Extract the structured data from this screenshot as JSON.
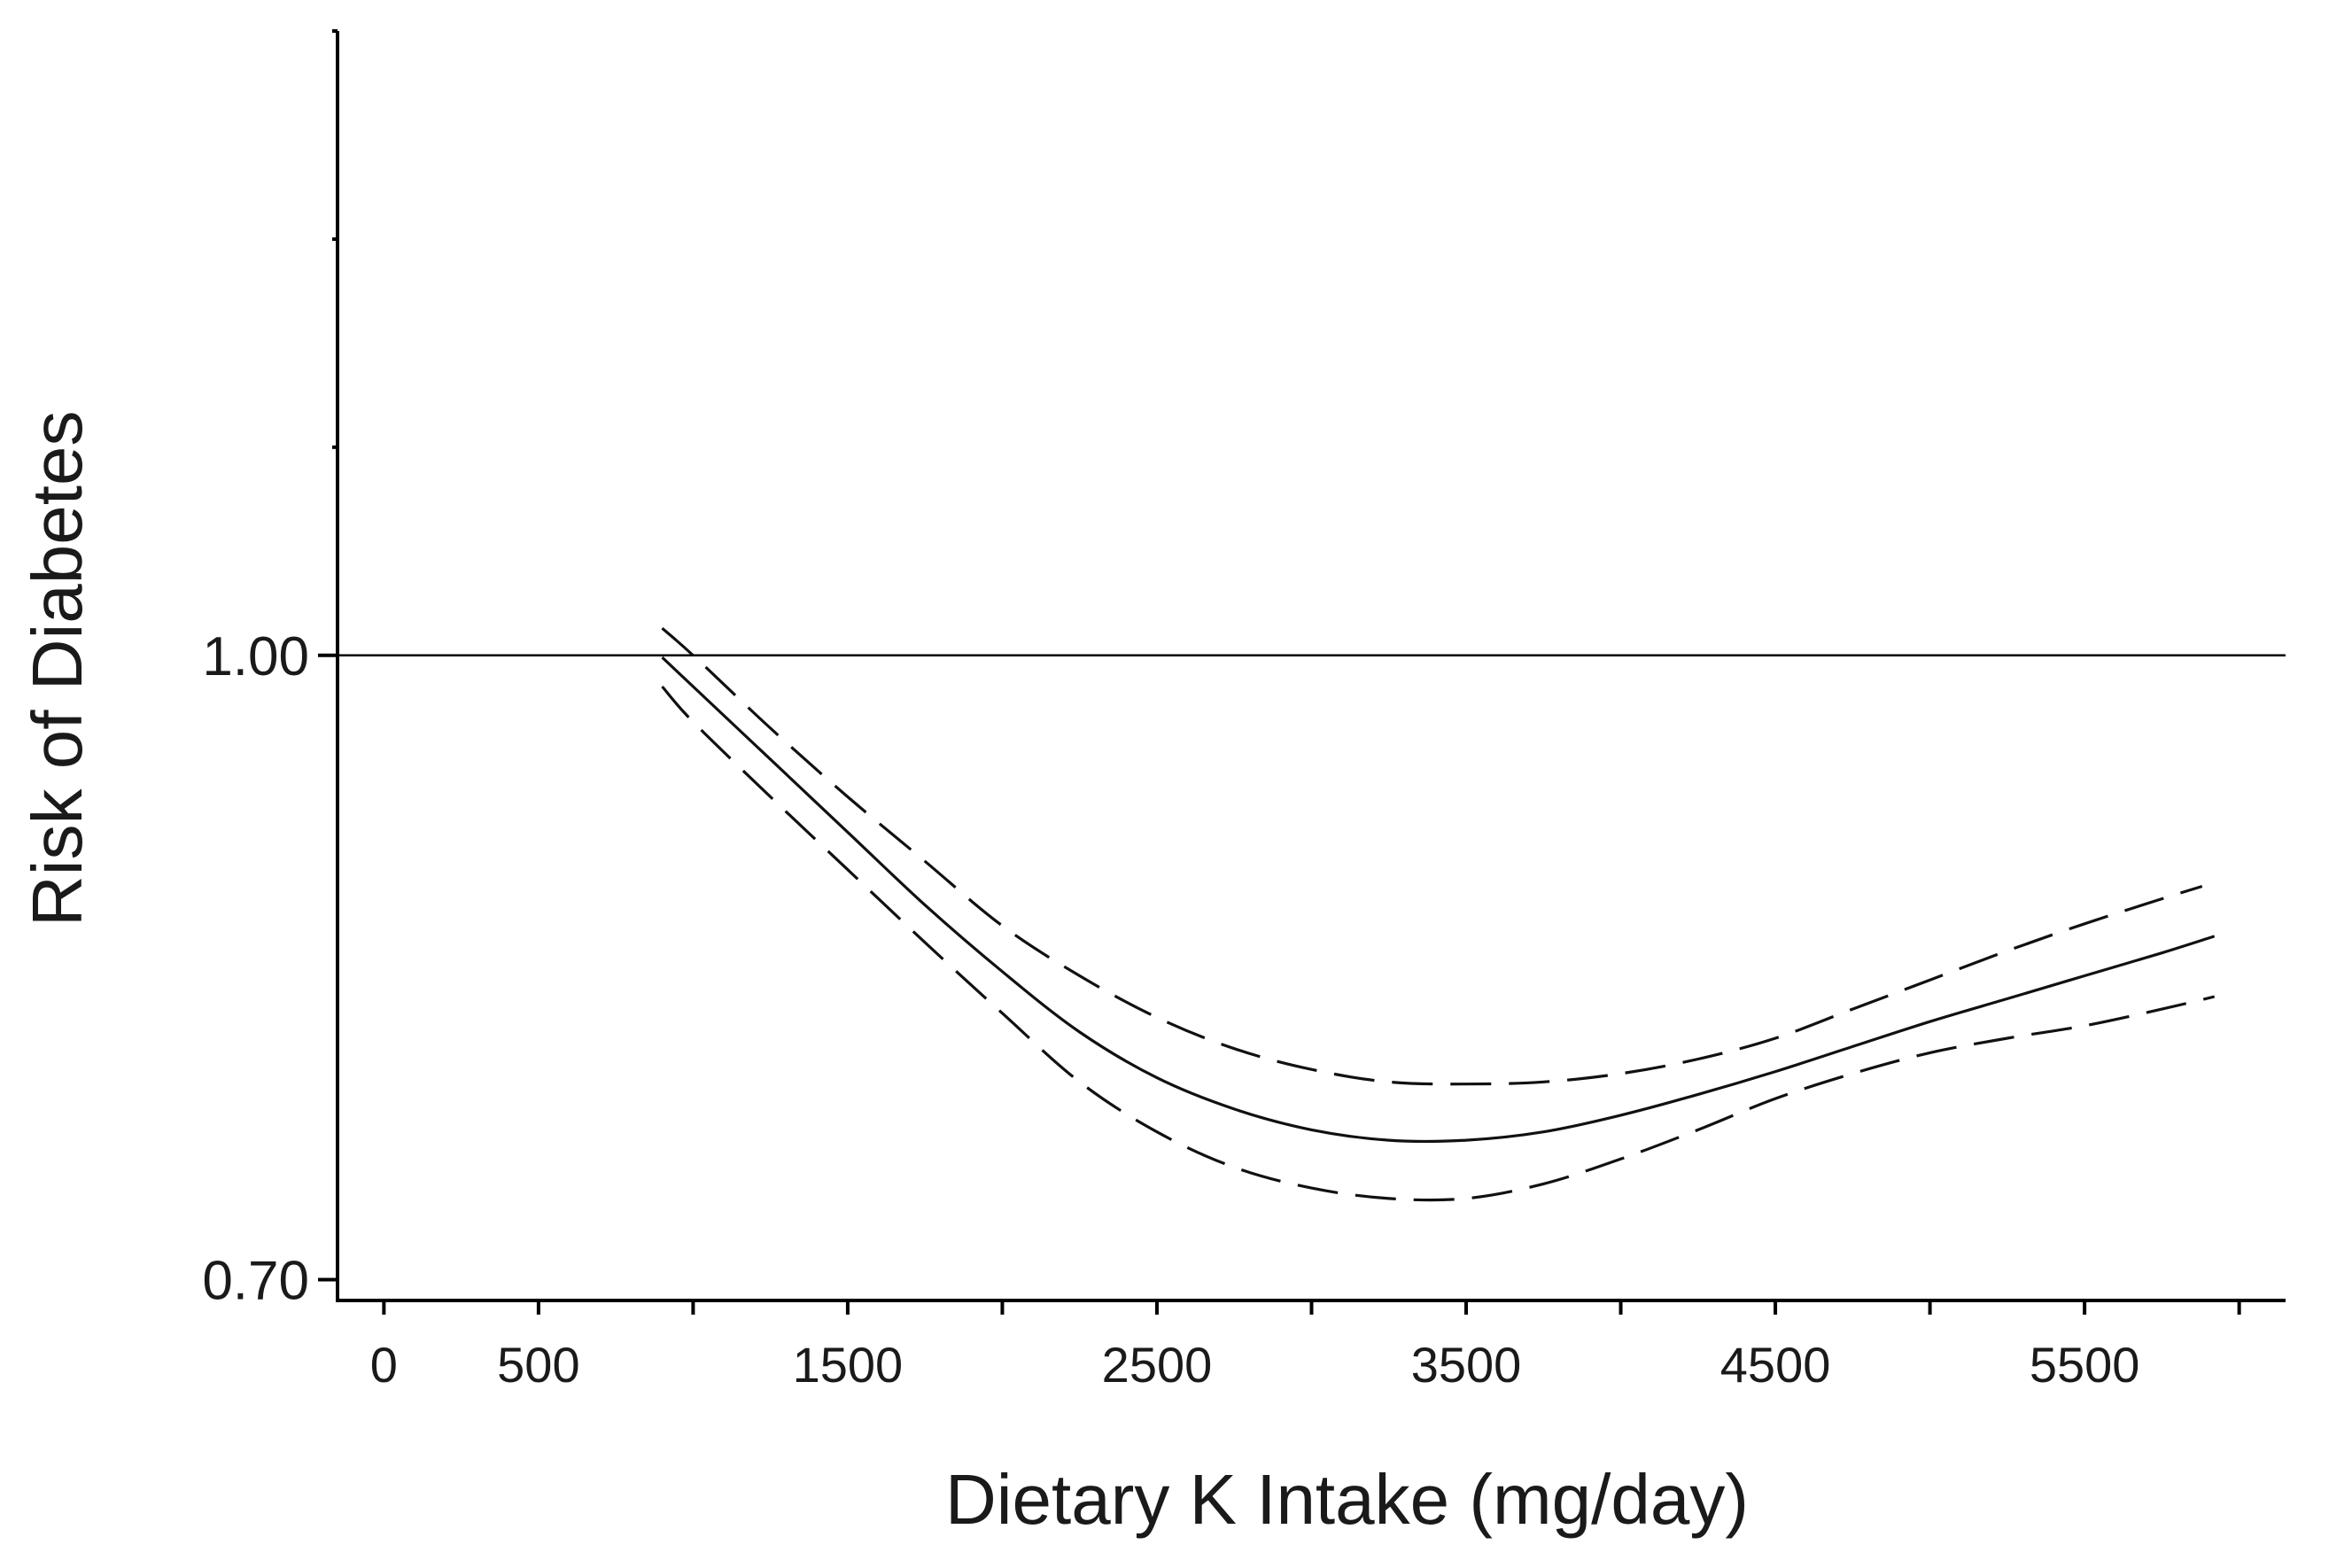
{
  "chart_data": {
    "type": "line",
    "title": "",
    "xlabel": "Dietary K Intake (mg/day)",
    "ylabel": "Risk of Diabetes",
    "xlim": [
      -150,
      6150
    ],
    "ylim": [
      0.69,
      1.3
    ],
    "xticks_labeled": [
      "0",
      "500",
      "1500",
      "2500",
      "3500",
      "4500",
      "5500"
    ],
    "xticks_all": [
      0,
      500,
      1000,
      1500,
      2000,
      2500,
      3000,
      3500,
      4000,
      4500,
      5000,
      5500,
      6000
    ],
    "yticks": [
      {
        "value": 0.7,
        "label": "0.70"
      },
      {
        "value": 1.0,
        "label": "1.00"
      }
    ],
    "reference_line": {
      "y": 1.0,
      "label": "1.00"
    },
    "series": [
      {
        "name": "Estimate",
        "style": "solid",
        "x": [
          900,
          1000,
          1250,
          1500,
          1750,
          2000,
          2250,
          2500,
          2750,
          3000,
          3250,
          3500,
          3750,
          4000,
          4250,
          4500,
          4750,
          5000,
          5250,
          5500,
          5750,
          5920
        ],
        "y": [
          0.999,
          0.985,
          0.95,
          0.915,
          0.88,
          0.848,
          0.819,
          0.797,
          0.782,
          0.772,
          0.767,
          0.767,
          0.771,
          0.779,
          0.789,
          0.8,
          0.812,
          0.824,
          0.835,
          0.846,
          0.857,
          0.865
        ]
      },
      {
        "name": "Upper 95% CI",
        "style": "dashed",
        "x": [
          900,
          1000,
          1250,
          1500,
          1750,
          2000,
          2250,
          2500,
          2750,
          3000,
          3250,
          3500,
          3750,
          4000,
          4250,
          4500,
          4750,
          5000,
          5250,
          5500,
          5750,
          5880
        ],
        "y": [
          1.013,
          1.0,
          0.965,
          0.932,
          0.901,
          0.87,
          0.846,
          0.826,
          0.811,
          0.801,
          0.795,
          0.794,
          0.795,
          0.799,
          0.806,
          0.816,
          0.83,
          0.844,
          0.858,
          0.871,
          0.883,
          0.889
        ]
      },
      {
        "name": "Lower 95% CI",
        "style": "dashed",
        "x": [
          900,
          1000,
          1250,
          1500,
          1750,
          2000,
          2250,
          2500,
          2750,
          3000,
          3250,
          3500,
          3750,
          4000,
          4250,
          4500,
          4750,
          5000,
          5250,
          5500,
          5750,
          5920
        ],
        "y": [
          0.985,
          0.968,
          0.932,
          0.897,
          0.862,
          0.828,
          0.795,
          0.771,
          0.754,
          0.744,
          0.739,
          0.739,
          0.746,
          0.758,
          0.772,
          0.787,
          0.799,
          0.809,
          0.816,
          0.822,
          0.83,
          0.836
        ]
      }
    ]
  }
}
